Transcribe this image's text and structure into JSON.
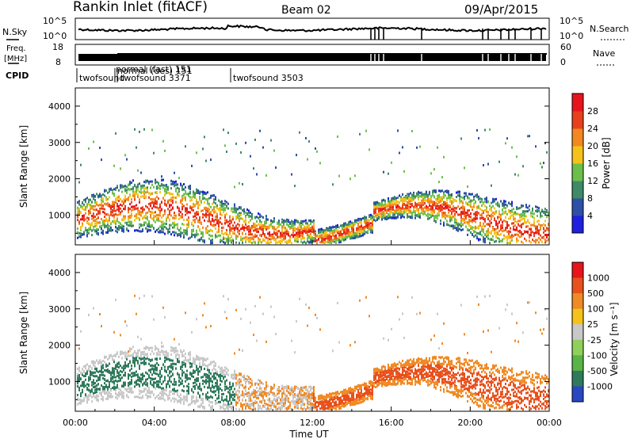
{
  "header": {
    "station": "Rankin Inlet (fitACF)",
    "beam": "Beam 02",
    "date": "09/Apr/2015"
  },
  "top_panels": {
    "nsky_label": "N.Sky",
    "nsky_ticks": [
      "10^5",
      "10^0"
    ],
    "nsearch_label": "N.Search",
    "nsearch_ticks": [
      "10^5",
      "10^0"
    ],
    "freq_label_1": "Freq.",
    "freq_label_2": "[MHz]",
    "freq_ticks": [
      "18",
      "8"
    ],
    "nave_label": "Nave",
    "nave_ticks": [
      "60",
      "0"
    ],
    "cpid_label": "CPID",
    "cpid_texts": [
      "twofsound",
      "normal (fast) 151",
      "normal (des) 151",
      "twofsound 3371",
      "twofsound 3503"
    ]
  },
  "chart_data": [
    {
      "type": "heatmap",
      "name": "power-panel",
      "ylabel": "Slant Range [km]",
      "yticks": [
        1000,
        2000,
        3000,
        4000
      ],
      "ylim": [
        180,
        4500
      ],
      "colorbar_label": "Power [dB]",
      "colorbar_ticks": [
        "4",
        "8",
        "12",
        "16",
        "20",
        "24",
        "28"
      ],
      "colorbar_colors": [
        "#1f1fe0",
        "#2d4fa8",
        "#3f8a66",
        "#6cc04a",
        "#f4c21a",
        "#f2881f",
        "#e8401c",
        "#e8141c"
      ]
    },
    {
      "type": "heatmap",
      "name": "velocity-panel",
      "ylabel": "Slant Range [km]",
      "yticks": [
        1000,
        2000,
        3000,
        4000
      ],
      "ylim": [
        180,
        4500
      ],
      "xlabel": "Time UT",
      "xticks": [
        "00:00",
        "04:00",
        "08:00",
        "12:00",
        "16:00",
        "20:00",
        "00:00"
      ],
      "colorbar_label": "Velocity [m s⁻¹]",
      "colorbar_ticks": [
        "1000",
        "500",
        "100",
        "25",
        "-25",
        "-100",
        "-500",
        "-1000"
      ],
      "colorbar_colors": [
        "#2a47c2",
        "#2f7a5b",
        "#59b447",
        "#8fd05a",
        "#c8c8c8",
        "#f4c21a",
        "#f08a24",
        "#e8501c",
        "#e8141c"
      ]
    }
  ]
}
